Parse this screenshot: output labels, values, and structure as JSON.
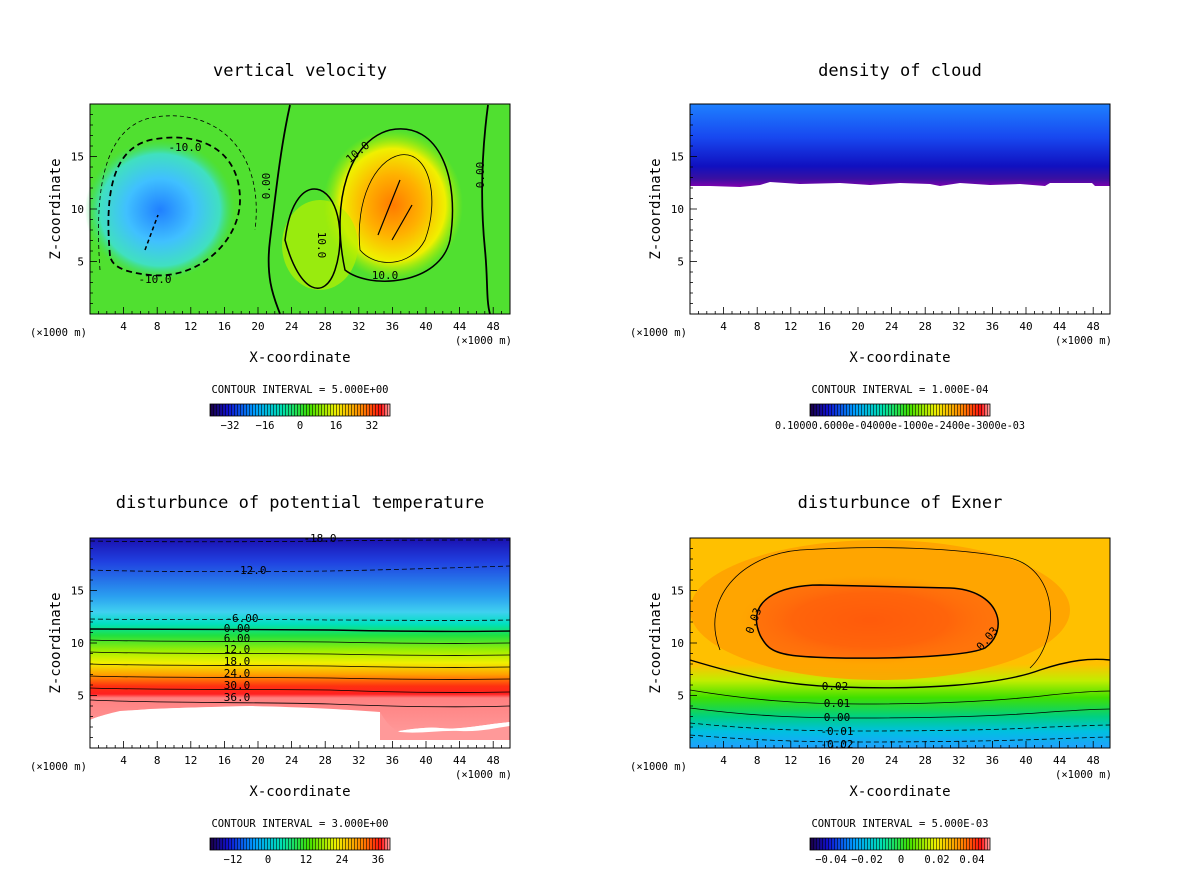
{
  "chart_data": [
    {
      "type": "heatmap",
      "title": "vertical velocity",
      "xlabel": "X-coordinate",
      "ylabel": "Z-coordinate",
      "x_unit_note": "(×1000 m)",
      "xlim": [
        0,
        50
      ],
      "ylim": [
        0,
        20
      ],
      "xticks": [
        4,
        8,
        12,
        16,
        20,
        24,
        28,
        32,
        36,
        40,
        44,
        48
      ],
      "yticks": [
        5,
        10,
        15
      ],
      "contour_interval": "CONTOUR INTERVAL = 5.000E+00",
      "colorbar_labels": [
        "−32",
        "−16",
        "0",
        "16",
        "32"
      ],
      "contour_labels": [
        "-10.0",
        "-10.0",
        "0.00",
        "0.00",
        "10.0",
        "10.0",
        "10.0"
      ]
    },
    {
      "type": "heatmap",
      "title": "density of cloud",
      "xlabel": "X-coordinate",
      "ylabel": "Z-coordinate",
      "x_unit_note": "(×1000 m)",
      "xlim": [
        0,
        50
      ],
      "ylim": [
        0,
        20
      ],
      "xticks": [
        4,
        8,
        12,
        16,
        20,
        24,
        28,
        32,
        36,
        40,
        44,
        48
      ],
      "yticks": [
        5,
        10,
        15
      ],
      "contour_interval": "CONTOUR INTERVAL = 1.000E-04",
      "colorbar_labels_text": "0.10000.6000e-04000e-1000e-2400e-3000e-03",
      "cloud_base_z": 12.5
    },
    {
      "type": "heatmap",
      "title": "disturbunce of potential temperature",
      "xlabel": "X-coordinate",
      "ylabel": "Z-coordinate",
      "x_unit_note": "(×1000 m)",
      "xlim": [
        0,
        50
      ],
      "ylim": [
        0,
        20
      ],
      "xticks": [
        4,
        8,
        12,
        16,
        20,
        24,
        28,
        32,
        36,
        40,
        44,
        48
      ],
      "yticks": [
        5,
        10,
        15
      ],
      "contour_interval": "CONTOUR INTERVAL = 3.000E+00",
      "colorbar_labels": [
        "−12",
        "0",
        "12",
        "24",
        "36"
      ],
      "contour_labels": [
        "-18.0",
        "-12.0",
        "-6.00",
        "0.00",
        "6.00",
        "12.0",
        "18.0",
        "24.0",
        "30.0",
        "36.0"
      ]
    },
    {
      "type": "heatmap",
      "title": "disturbunce of Exner",
      "xlabel": "X-coordinate",
      "ylabel": "Z-coordinate",
      "x_unit_note": "(×1000 m)",
      "xlim": [
        0,
        50
      ],
      "ylim": [
        0,
        20
      ],
      "xticks": [
        4,
        8,
        12,
        16,
        20,
        24,
        28,
        32,
        36,
        40,
        44,
        48
      ],
      "yticks": [
        5,
        10,
        15
      ],
      "contour_interval": "CONTOUR INTERVAL = 5.000E-03",
      "colorbar_labels": [
        "−0.04",
        "−0.02",
        "0",
        "0.02",
        "0.04"
      ],
      "contour_labels": [
        "0.03",
        "0.03",
        "0.02",
        "0.01",
        "0.00",
        "-0.01",
        "-0.02"
      ]
    }
  ]
}
